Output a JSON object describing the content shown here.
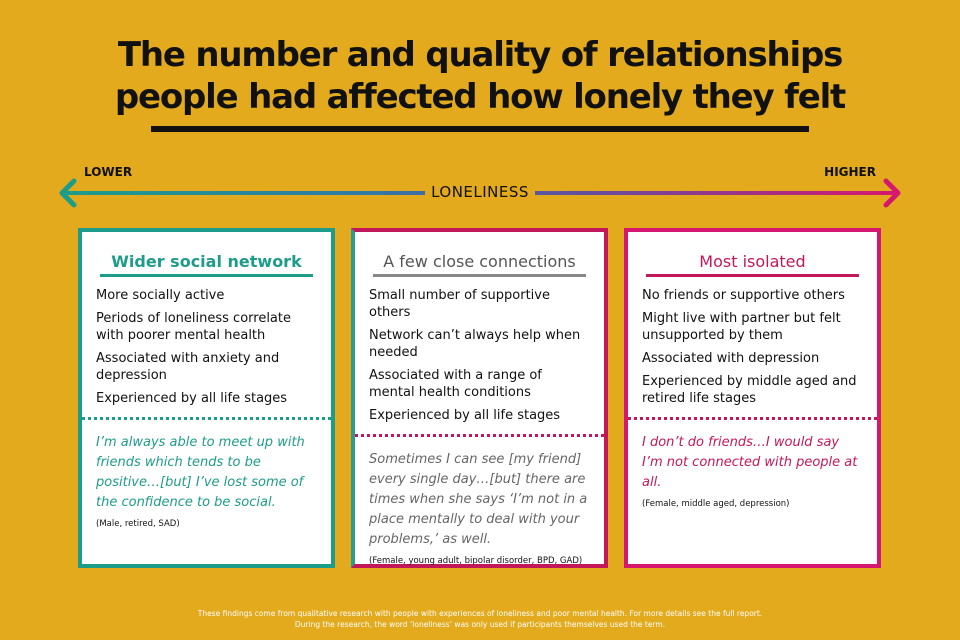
{
  "title": {
    "line1": "The number and quality of relationships",
    "line2": "people had affected how lonely they felt"
  },
  "scale": {
    "low_label": "LOWER",
    "high_label": "HIGHER",
    "axis_label": "LONELINESS",
    "gradient_colors": [
      "#1E9C8A",
      "#2E7BA6",
      "#6B4A9E",
      "#D51770"
    ]
  },
  "cards": [
    {
      "heading": "Wider social network",
      "color": "#1E9C8A",
      "points": [
        "More socially active",
        "Periods of loneliness correlate with poorer mental health",
        "Associated with anxiety and depression",
        "Experienced by all life stages"
      ],
      "quote": "I’m always able to meet up with friends which tends to be positive…[but] I’ve lost some of the confidence to be social.",
      "attribution": "(Male, retired, SAD)"
    },
    {
      "heading": "A few close connections",
      "color": "#888888",
      "points": [
        "Small number of supportive others",
        "Network can’t always help when needed",
        "Associated with a range of mental health conditions",
        "Experienced by all life stages"
      ],
      "quote": "Sometimes I can see [my friend] every single day…[but] there are times when she says ‘I’m not in a place mentally to deal with your problems,’ as well.",
      "attribution": "(Female, young adult, bipolar disorder, BPD, GAD)"
    },
    {
      "heading": "Most isolated",
      "color": "#C2185B",
      "points": [
        "No friends or supportive others",
        "Might live with partner but felt unsupported by them",
        "Associated with depression",
        "Experienced by middle aged and retired life stages"
      ],
      "quote": "I don’t do friends…I would say I’m not connected with people at all.",
      "attribution": "(Female, middle aged, depression)"
    }
  ],
  "footer": {
    "line1": "These findings come from qualitative research with people with experiences of loneliness and poor mental health. For more details see the full report.",
    "line2": "During the research, the word ‘loneliness’ was only used if participants themselves used the term."
  }
}
